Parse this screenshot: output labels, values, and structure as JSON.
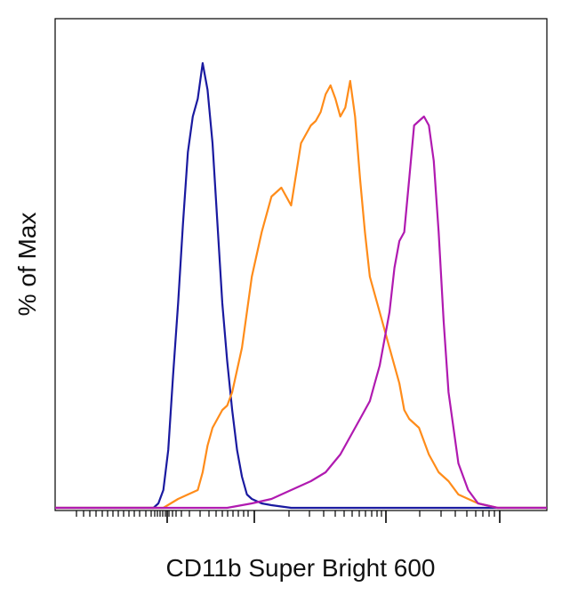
{
  "chart_data": {
    "type": "line",
    "title": "",
    "xlabel": "CD11b Super Bright 600",
    "ylabel": "% of Max",
    "x_scale": "log (flow cytometry biexponential, tick labels not printed)",
    "xlim": [
      0,
      100
    ],
    "ylim": [
      0,
      100
    ],
    "grid": false,
    "legend": "none",
    "series": [
      {
        "color": "#1a1aa0",
        "x": [
          0,
          20,
          21,
          22,
          23,
          24,
          25,
          26,
          27,
          28,
          29,
          30,
          31,
          32,
          33,
          34,
          35,
          36,
          37,
          38,
          39,
          40,
          41,
          42,
          44,
          46,
          48,
          100
        ],
        "y": [
          0,
          0,
          1,
          4,
          13,
          30,
          46,
          64,
          80,
          88,
          92,
          100,
          94,
          82,
          64,
          46,
          33,
          22,
          13,
          7,
          3,
          2,
          1.5,
          1,
          0.6,
          0.3,
          0,
          0
        ]
      },
      {
        "color": "#ff8c1a",
        "x": [
          0,
          22,
          25,
          27,
          29,
          30,
          31,
          32,
          33,
          34,
          35,
          36,
          38,
          40,
          42,
          44,
          46,
          48,
          50,
          52,
          53,
          54,
          55,
          56,
          57,
          58,
          59,
          60,
          61,
          62,
          63,
          64,
          66,
          67,
          68,
          70,
          71,
          72,
          74,
          76,
          78,
          80,
          82,
          84,
          86,
          90,
          100
        ],
        "y": [
          0,
          0,
          2,
          3,
          4,
          8,
          14,
          18,
          20,
          22,
          23,
          26,
          36,
          52,
          62,
          70,
          72,
          68,
          82,
          86,
          87,
          89,
          93,
          95,
          92,
          88,
          90,
          96,
          88,
          74,
          62,
          52,
          44,
          40,
          36,
          28,
          22,
          20,
          18,
          12,
          8,
          6,
          3,
          2,
          1,
          0,
          0
        ]
      },
      {
        "color": "#b01ab0",
        "x": [
          0,
          35,
          40,
          44,
          48,
          52,
          55,
          58,
          60,
          62,
          64,
          65,
          66,
          68,
          69,
          70,
          71,
          72,
          73,
          74,
          75,
          76,
          77,
          78,
          79,
          80,
          82,
          84,
          86,
          88,
          90,
          100
        ],
        "y": [
          0,
          0,
          1,
          2,
          4,
          6,
          8,
          12,
          16,
          20,
          24,
          28,
          32,
          44,
          54,
          60,
          62,
          74,
          86,
          87,
          88,
          86,
          78,
          62,
          42,
          26,
          10,
          4,
          1,
          0.5,
          0,
          0
        ]
      }
    ]
  }
}
